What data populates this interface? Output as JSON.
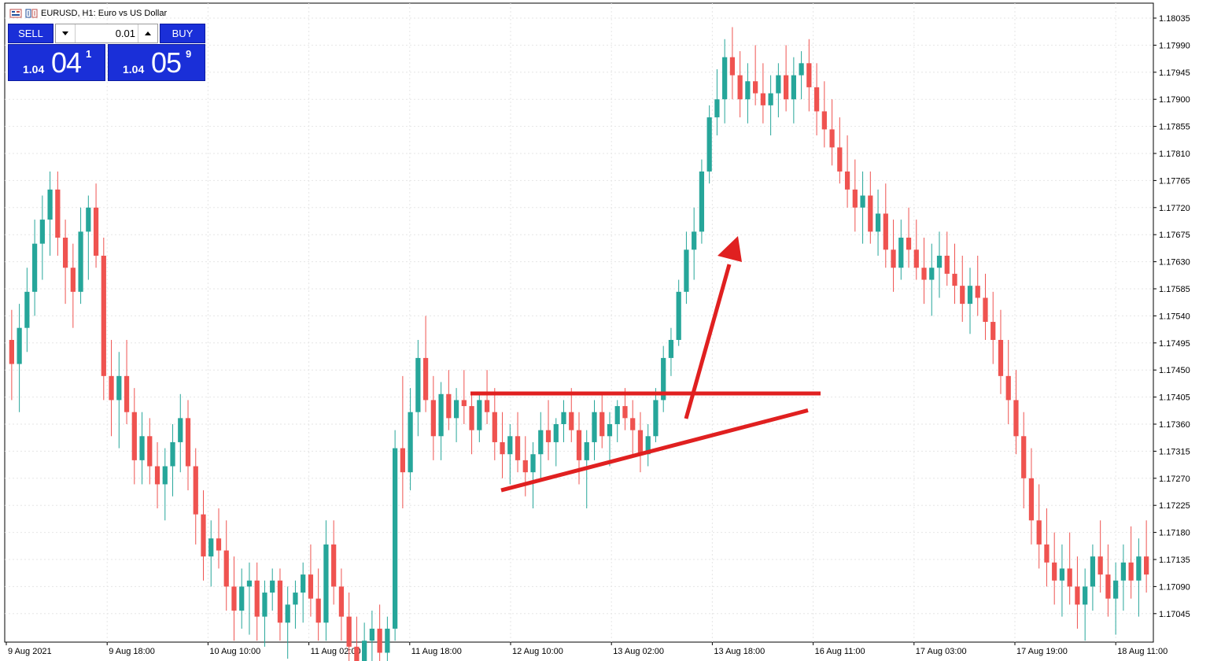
{
  "window": {
    "title": "EURUSD, H1:  Euro vs US Dollar"
  },
  "trade_panel": {
    "sell_label": "SELL",
    "buy_label": "BUY",
    "lot_value": "0.01",
    "sell_price": {
      "prefix": "1.04",
      "big": "04",
      "sup": "1"
    },
    "buy_price": {
      "prefix": "1.04",
      "big": "05",
      "sup": "9"
    }
  },
  "colors": {
    "bull": "#26a69a",
    "bear": "#ef5350",
    "annotation": "#e02020",
    "background": "#ffffff",
    "grid": "#e6e6e6",
    "trade_button": "#1a2fd8"
  },
  "chart_data": {
    "type": "candlestick",
    "symbol": "EURUSD",
    "timeframe": "H1",
    "ylim": [
      1.17018,
      1.18035
    ],
    "y_ticks": [
      "1.18035",
      "1.17990",
      "1.17945",
      "1.17900",
      "1.17855",
      "1.17810",
      "1.17765",
      "1.17720",
      "1.17675",
      "1.17630",
      "1.17585",
      "1.17540",
      "1.17495",
      "1.17450",
      "1.17405",
      "1.17360",
      "1.17315",
      "1.17270",
      "1.17225",
      "1.17180",
      "1.17135",
      "1.17090",
      "1.17045"
    ],
    "x_ticks": [
      "9 Aug 2021",
      "9 Aug 18:00",
      "10 Aug 10:00",
      "11 Aug 02:00",
      "11 Aug 18:00",
      "12 Aug 10:00",
      "13 Aug 02:00",
      "13 Aug 18:00",
      "16 Aug 11:00",
      "17 Aug 03:00",
      "17 Aug 19:00",
      "18 Aug 11:00"
    ],
    "candles": [
      [
        1.175,
        1.1755,
        1.174,
        1.1746
      ],
      [
        1.1746,
        1.1756,
        1.1738,
        1.1752
      ],
      [
        1.1752,
        1.1762,
        1.1748,
        1.1758
      ],
      [
        1.1758,
        1.177,
        1.1754,
        1.1766
      ],
      [
        1.1766,
        1.1774,
        1.176,
        1.177
      ],
      [
        1.177,
        1.1778,
        1.1764,
        1.1775
      ],
      [
        1.1775,
        1.1778,
        1.1764,
        1.1767
      ],
      [
        1.1767,
        1.177,
        1.1756,
        1.1762
      ],
      [
        1.1762,
        1.1766,
        1.1752,
        1.1758
      ],
      [
        1.1758,
        1.1772,
        1.1756,
        1.1768
      ],
      [
        1.1768,
        1.1774,
        1.176,
        1.1772
      ],
      [
        1.1772,
        1.1776,
        1.1762,
        1.1764
      ],
      [
        1.1764,
        1.1767,
        1.174,
        1.1744
      ],
      [
        1.1744,
        1.175,
        1.1734,
        1.174
      ],
      [
        1.174,
        1.1748,
        1.1732,
        1.1744
      ],
      [
        1.1744,
        1.175,
        1.1736,
        1.1738
      ],
      [
        1.1738,
        1.1742,
        1.1726,
        1.173
      ],
      [
        1.173,
        1.1738,
        1.1726,
        1.1734
      ],
      [
        1.1734,
        1.1737,
        1.1726,
        1.1729
      ],
      [
        1.1729,
        1.1733,
        1.1722,
        1.1726
      ],
      [
        1.1726,
        1.1732,
        1.172,
        1.1729
      ],
      [
        1.1729,
        1.1736,
        1.1724,
        1.1733
      ],
      [
        1.1733,
        1.1741,
        1.1728,
        1.1737
      ],
      [
        1.1737,
        1.174,
        1.1725,
        1.1729
      ],
      [
        1.1729,
        1.1732,
        1.1716,
        1.1721
      ],
      [
        1.1721,
        1.1725,
        1.171,
        1.1714
      ],
      [
        1.1714,
        1.172,
        1.1709,
        1.1717
      ],
      [
        1.1717,
        1.1722,
        1.1712,
        1.1715
      ],
      [
        1.1715,
        1.172,
        1.1705,
        1.1709
      ],
      [
        1.1709,
        1.1714,
        1.17,
        1.1705
      ],
      [
        1.1705,
        1.1712,
        1.1702,
        1.1709
      ],
      [
        1.1709,
        1.1713,
        1.1701,
        1.171
      ],
      [
        1.171,
        1.1713,
        1.17,
        1.1704
      ],
      [
        1.1704,
        1.171,
        1.1699,
        1.1708
      ],
      [
        1.1708,
        1.1712,
        1.1705,
        1.171
      ],
      [
        1.171,
        1.1712,
        1.17,
        1.1703
      ],
      [
        1.1703,
        1.1709,
        1.1697,
        1.1706
      ],
      [
        1.1706,
        1.171,
        1.1702,
        1.1708
      ],
      [
        1.1708,
        1.1713,
        1.1703,
        1.1711
      ],
      [
        1.1711,
        1.1716,
        1.1704,
        1.1707
      ],
      [
        1.1707,
        1.1712,
        1.17,
        1.1703
      ],
      [
        1.1703,
        1.172,
        1.17,
        1.1716
      ],
      [
        1.1716,
        1.172,
        1.1706,
        1.1709
      ],
      [
        1.1709,
        1.1712,
        1.17,
        1.1704
      ],
      [
        1.1704,
        1.1708,
        1.1696,
        1.1699
      ],
      [
        1.1699,
        1.1704,
        1.1692,
        1.1696
      ],
      [
        1.1696,
        1.1703,
        1.1694,
        1.17
      ],
      [
        1.17,
        1.1705,
        1.1695,
        1.1702
      ],
      [
        1.1702,
        1.1706,
        1.1696,
        1.1698
      ],
      [
        1.1698,
        1.1704,
        1.1695,
        1.1702
      ],
      [
        1.1702,
        1.1735,
        1.17,
        1.1732
      ],
      [
        1.1732,
        1.1744,
        1.1722,
        1.1728
      ],
      [
        1.1728,
        1.1742,
        1.1725,
        1.1738
      ],
      [
        1.1738,
        1.175,
        1.1734,
        1.1747
      ],
      [
        1.1747,
        1.1754,
        1.1738,
        1.174
      ],
      [
        1.174,
        1.1744,
        1.173,
        1.1734
      ],
      [
        1.1734,
        1.1743,
        1.173,
        1.1741
      ],
      [
        1.1741,
        1.1745,
        1.1735,
        1.1737
      ],
      [
        1.1737,
        1.1742,
        1.1733,
        1.174
      ],
      [
        1.174,
        1.1745,
        1.1736,
        1.1739
      ],
      [
        1.1739,
        1.1741,
        1.1731,
        1.1735
      ],
      [
        1.1735,
        1.1741,
        1.1733,
        1.174
      ],
      [
        1.174,
        1.1745,
        1.1736,
        1.1738
      ],
      [
        1.1738,
        1.1742,
        1.173,
        1.1733
      ],
      [
        1.1733,
        1.1738,
        1.1727,
        1.1731
      ],
      [
        1.1731,
        1.1736,
        1.1726,
        1.1734
      ],
      [
        1.1734,
        1.1738,
        1.1728,
        1.173
      ],
      [
        1.173,
        1.1734,
        1.1724,
        1.1728
      ],
      [
        1.1728,
        1.1733,
        1.1722,
        1.1731
      ],
      [
        1.1731,
        1.1738,
        1.1727,
        1.1735
      ],
      [
        1.1735,
        1.174,
        1.173,
        1.1733
      ],
      [
        1.1733,
        1.1737,
        1.1729,
        1.1736
      ],
      [
        1.1736,
        1.174,
        1.1733,
        1.1738
      ],
      [
        1.1738,
        1.1742,
        1.1733,
        1.1735
      ],
      [
        1.1735,
        1.1738,
        1.1726,
        1.173
      ],
      [
        1.173,
        1.1735,
        1.1722,
        1.1733
      ],
      [
        1.1733,
        1.174,
        1.173,
        1.1738
      ],
      [
        1.1738,
        1.1741,
        1.1732,
        1.1734
      ],
      [
        1.1734,
        1.1738,
        1.1729,
        1.1736
      ],
      [
        1.1736,
        1.174,
        1.1733,
        1.1739
      ],
      [
        1.1739,
        1.1742,
        1.1735,
        1.1737
      ],
      [
        1.1737,
        1.174,
        1.1731,
        1.1735
      ],
      [
        1.1735,
        1.1738,
        1.1728,
        1.1731
      ],
      [
        1.1731,
        1.1736,
        1.1729,
        1.1734
      ],
      [
        1.1734,
        1.1742,
        1.1733,
        1.174
      ],
      [
        1.174,
        1.1749,
        1.1738,
        1.1747
      ],
      [
        1.1747,
        1.1752,
        1.1744,
        1.175
      ],
      [
        1.175,
        1.176,
        1.1749,
        1.1758
      ],
      [
        1.1758,
        1.1768,
        1.1756,
        1.1765
      ],
      [
        1.1765,
        1.1772,
        1.176,
        1.1768
      ],
      [
        1.1768,
        1.178,
        1.1766,
        1.1778
      ],
      [
        1.1778,
        1.1789,
        1.1776,
        1.1787
      ],
      [
        1.1787,
        1.1795,
        1.1784,
        1.179
      ],
      [
        1.179,
        1.18,
        1.1786,
        1.1797
      ],
      [
        1.1797,
        1.1802,
        1.179,
        1.1794
      ],
      [
        1.1794,
        1.1798,
        1.1787,
        1.179
      ],
      [
        1.179,
        1.1796,
        1.1786,
        1.1793
      ],
      [
        1.1793,
        1.1799,
        1.1789,
        1.1791
      ],
      [
        1.1791,
        1.1796,
        1.1786,
        1.1789
      ],
      [
        1.1789,
        1.1794,
        1.1784,
        1.1791
      ],
      [
        1.1791,
        1.1796,
        1.1787,
        1.1794
      ],
      [
        1.1794,
        1.1799,
        1.1788,
        1.179
      ],
      [
        1.179,
        1.1797,
        1.1786,
        1.1794
      ],
      [
        1.1794,
        1.1798,
        1.179,
        1.1796
      ],
      [
        1.1796,
        1.18,
        1.1788,
        1.1792
      ],
      [
        1.1792,
        1.1796,
        1.1784,
        1.1788
      ],
      [
        1.1788,
        1.1793,
        1.1782,
        1.1785
      ],
      [
        1.1785,
        1.179,
        1.1779,
        1.1782
      ],
      [
        1.1782,
        1.1787,
        1.1776,
        1.1778
      ],
      [
        1.1778,
        1.1784,
        1.1772,
        1.1775
      ],
      [
        1.1775,
        1.178,
        1.1768,
        1.1772
      ],
      [
        1.1772,
        1.1778,
        1.1766,
        1.1774
      ],
      [
        1.1774,
        1.1778,
        1.1766,
        1.1768
      ],
      [
        1.1768,
        1.1775,
        1.1764,
        1.1771
      ],
      [
        1.1771,
        1.1776,
        1.1762,
        1.1765
      ],
      [
        1.1765,
        1.177,
        1.1758,
        1.1762
      ],
      [
        1.1762,
        1.177,
        1.176,
        1.1767
      ],
      [
        1.1767,
        1.1772,
        1.1762,
        1.1765
      ],
      [
        1.1765,
        1.177,
        1.176,
        1.1762
      ],
      [
        1.1762,
        1.1767,
        1.1756,
        1.176
      ],
      [
        1.176,
        1.1766,
        1.1754,
        1.1762
      ],
      [
        1.1762,
        1.1768,
        1.1757,
        1.1764
      ],
      [
        1.1764,
        1.1768,
        1.1759,
        1.1761
      ],
      [
        1.1761,
        1.1766,
        1.1756,
        1.1759
      ],
      [
        1.1759,
        1.1764,
        1.1753,
        1.1756
      ],
      [
        1.1756,
        1.1762,
        1.1751,
        1.1759
      ],
      [
        1.1759,
        1.1764,
        1.1754,
        1.1757
      ],
      [
        1.1757,
        1.1761,
        1.175,
        1.1753
      ],
      [
        1.1753,
        1.1758,
        1.1746,
        1.175
      ],
      [
        1.175,
        1.1755,
        1.1741,
        1.1744
      ],
      [
        1.1744,
        1.175,
        1.1736,
        1.174
      ],
      [
        1.174,
        1.1745,
        1.1731,
        1.1734
      ],
      [
        1.1734,
        1.1738,
        1.1722,
        1.1727
      ],
      [
        1.1727,
        1.1732,
        1.1716,
        1.172
      ],
      [
        1.172,
        1.1726,
        1.1712,
        1.1716
      ],
      [
        1.1716,
        1.1722,
        1.1709,
        1.1713
      ],
      [
        1.1713,
        1.1718,
        1.1706,
        1.171
      ],
      [
        1.171,
        1.1716,
        1.1704,
        1.1712
      ],
      [
        1.1712,
        1.1718,
        1.1706,
        1.1709
      ],
      [
        1.1709,
        1.1714,
        1.1702,
        1.1706
      ],
      [
        1.1706,
        1.1712,
        1.17,
        1.1709
      ],
      [
        1.1709,
        1.1716,
        1.1705,
        1.1714
      ],
      [
        1.1714,
        1.172,
        1.1708,
        1.1711
      ],
      [
        1.1711,
        1.1716,
        1.1704,
        1.1707
      ],
      [
        1.1707,
        1.1713,
        1.1701,
        1.171
      ],
      [
        1.171,
        1.1716,
        1.1705,
        1.1713
      ],
      [
        1.1713,
        1.1719,
        1.1707,
        1.171
      ],
      [
        1.171,
        1.1717,
        1.1704,
        1.1714
      ],
      [
        1.1714,
        1.172,
        1.1708,
        1.1711
      ]
    ],
    "annotations": [
      {
        "type": "horizontal-line",
        "price": 1.17411
      },
      {
        "type": "rising-trendline",
        "from_price": 1.1725,
        "to_price": 1.17383
      },
      {
        "type": "arrow",
        "direction": "up"
      }
    ]
  }
}
